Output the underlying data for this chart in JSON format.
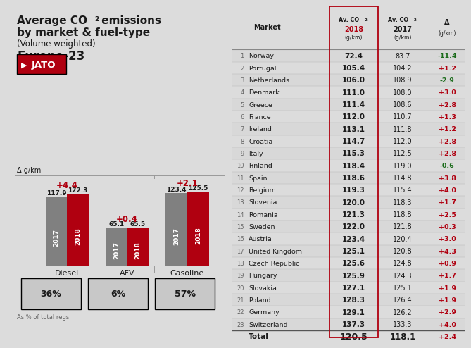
{
  "bg_color": "#dcdcdc",
  "bar_data": {
    "categories": [
      "Diesel",
      "AFV",
      "Gasoline"
    ],
    "values_2017": [
      117.9,
      65.1,
      123.4
    ],
    "values_2018": [
      122.3,
      65.5,
      125.5
    ],
    "deltas": [
      "+4.4",
      "+0.4",
      "+2.1"
    ],
    "pcts": [
      "36%",
      "6%",
      "57%"
    ],
    "color_2017": "#808080",
    "color_2018": "#b00010"
  },
  "table_data": {
    "markets": [
      "Norway",
      "Portugal",
      "Netherlands",
      "Denmark",
      "Greece",
      "France",
      "Ireland",
      "Croatia",
      "Italy",
      "Finland",
      "Spain",
      "Belgium",
      "Slovenia",
      "Romania",
      "Sweden",
      "Austria",
      "United Kingdom",
      "Czech Republic",
      "Hungary",
      "Slovakia",
      "Poland",
      "Germany",
      "Switzerland",
      "Total"
    ],
    "ranks": [
      "1",
      "2",
      "3",
      "4",
      "5",
      "6",
      "7",
      "8",
      "9",
      "10",
      "11",
      "12",
      "13",
      "14",
      "15",
      "16",
      "17",
      "18",
      "19",
      "20",
      "21",
      "22",
      "23",
      ""
    ],
    "co2_2018": [
      "72.4",
      "105.4",
      "106.0",
      "111.0",
      "111.4",
      "112.0",
      "113.1",
      "114.7",
      "115.3",
      "118.4",
      "118.6",
      "119.3",
      "120.0",
      "121.3",
      "122.0",
      "123.4",
      "125.1",
      "125.6",
      "125.9",
      "127.1",
      "128.3",
      "129.1",
      "137.3",
      "120.5"
    ],
    "co2_2017": [
      "83.7",
      "104.2",
      "108.9",
      "108.0",
      "108.6",
      "110.7",
      "111.8",
      "112.0",
      "112.5",
      "119.0",
      "114.8",
      "115.4",
      "118.3",
      "118.8",
      "121.8",
      "120.4",
      "120.8",
      "124.8",
      "124.3",
      "125.1",
      "126.4",
      "126.2",
      "133.3",
      "118.1"
    ],
    "delta": [
      "-11.4",
      "+1.2",
      "-2.9",
      "+3.0",
      "+2.8",
      "+1.3",
      "+1.2",
      "+2.8",
      "+2.8",
      "-0.6",
      "+3.8",
      "+4.0",
      "+1.7",
      "+2.5",
      "+0.3",
      "+3.0",
      "+4.3",
      "+0.9",
      "+1.7",
      "+1.9",
      "+1.9",
      "+2.9",
      "+4.0",
      "+2.4"
    ]
  },
  "red_color": "#b00010",
  "green_color": "#1a6b1a",
  "dark_text": "#1a1a1a",
  "mid_text": "#444444",
  "gray_text": "#666666",
  "line_color": "#aaaaaa"
}
